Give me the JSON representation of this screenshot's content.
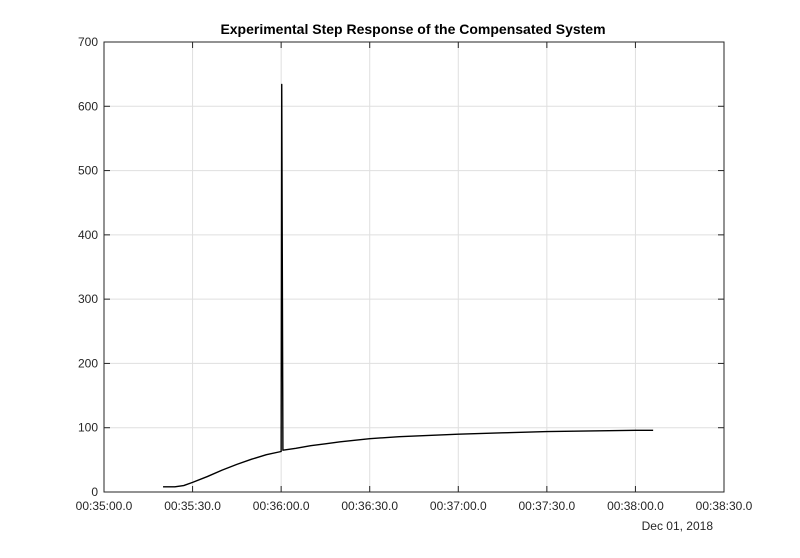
{
  "chart_data": {
    "type": "line",
    "title": "Experimental Step Response of the Compensated System",
    "xlabel": "",
    "ylabel": "",
    "x_axis_kind": "time",
    "x_date_label": "Dec 01, 2018",
    "xlim": [
      "00:35:00.0",
      "00:38:30.0"
    ],
    "ylim": [
      0,
      700
    ],
    "grid": true,
    "x_ticks": [
      "00:35:00.0",
      "00:35:30.0",
      "00:36:00.0",
      "00:36:30.0",
      "00:37:00.0",
      "00:37:30.0",
      "00:38:00.0",
      "00:38:30.0"
    ],
    "y_ticks": [
      0,
      100,
      200,
      300,
      400,
      500,
      600,
      700
    ],
    "series": [
      {
        "color": "#000000",
        "points": [
          [
            "00:35:20.0",
            8
          ],
          [
            "00:35:24.0",
            8
          ],
          [
            "00:35:27.0",
            10
          ],
          [
            "00:35:30.0",
            15
          ],
          [
            "00:35:35.0",
            24
          ],
          [
            "00:35:40.0",
            34
          ],
          [
            "00:35:45.0",
            43
          ],
          [
            "00:35:50.0",
            51
          ],
          [
            "00:35:55.0",
            58
          ],
          [
            "00:36:00.0",
            63
          ],
          [
            "00:36:00.2",
            634
          ],
          [
            "00:36:00.6",
            65
          ],
          [
            "00:36:05.0",
            68
          ],
          [
            "00:36:10.0",
            72
          ],
          [
            "00:36:15.0",
            75
          ],
          [
            "00:36:20.0",
            78
          ],
          [
            "00:36:30.0",
            83
          ],
          [
            "00:36:40.0",
            86
          ],
          [
            "00:36:50.0",
            88
          ],
          [
            "00:37:00.0",
            90
          ],
          [
            "00:37:15.0",
            92
          ],
          [
            "00:37:30.0",
            94
          ],
          [
            "00:37:45.0",
            95
          ],
          [
            "00:38:00.0",
            96
          ],
          [
            "00:38:06.0",
            96
          ]
        ]
      }
    ]
  }
}
